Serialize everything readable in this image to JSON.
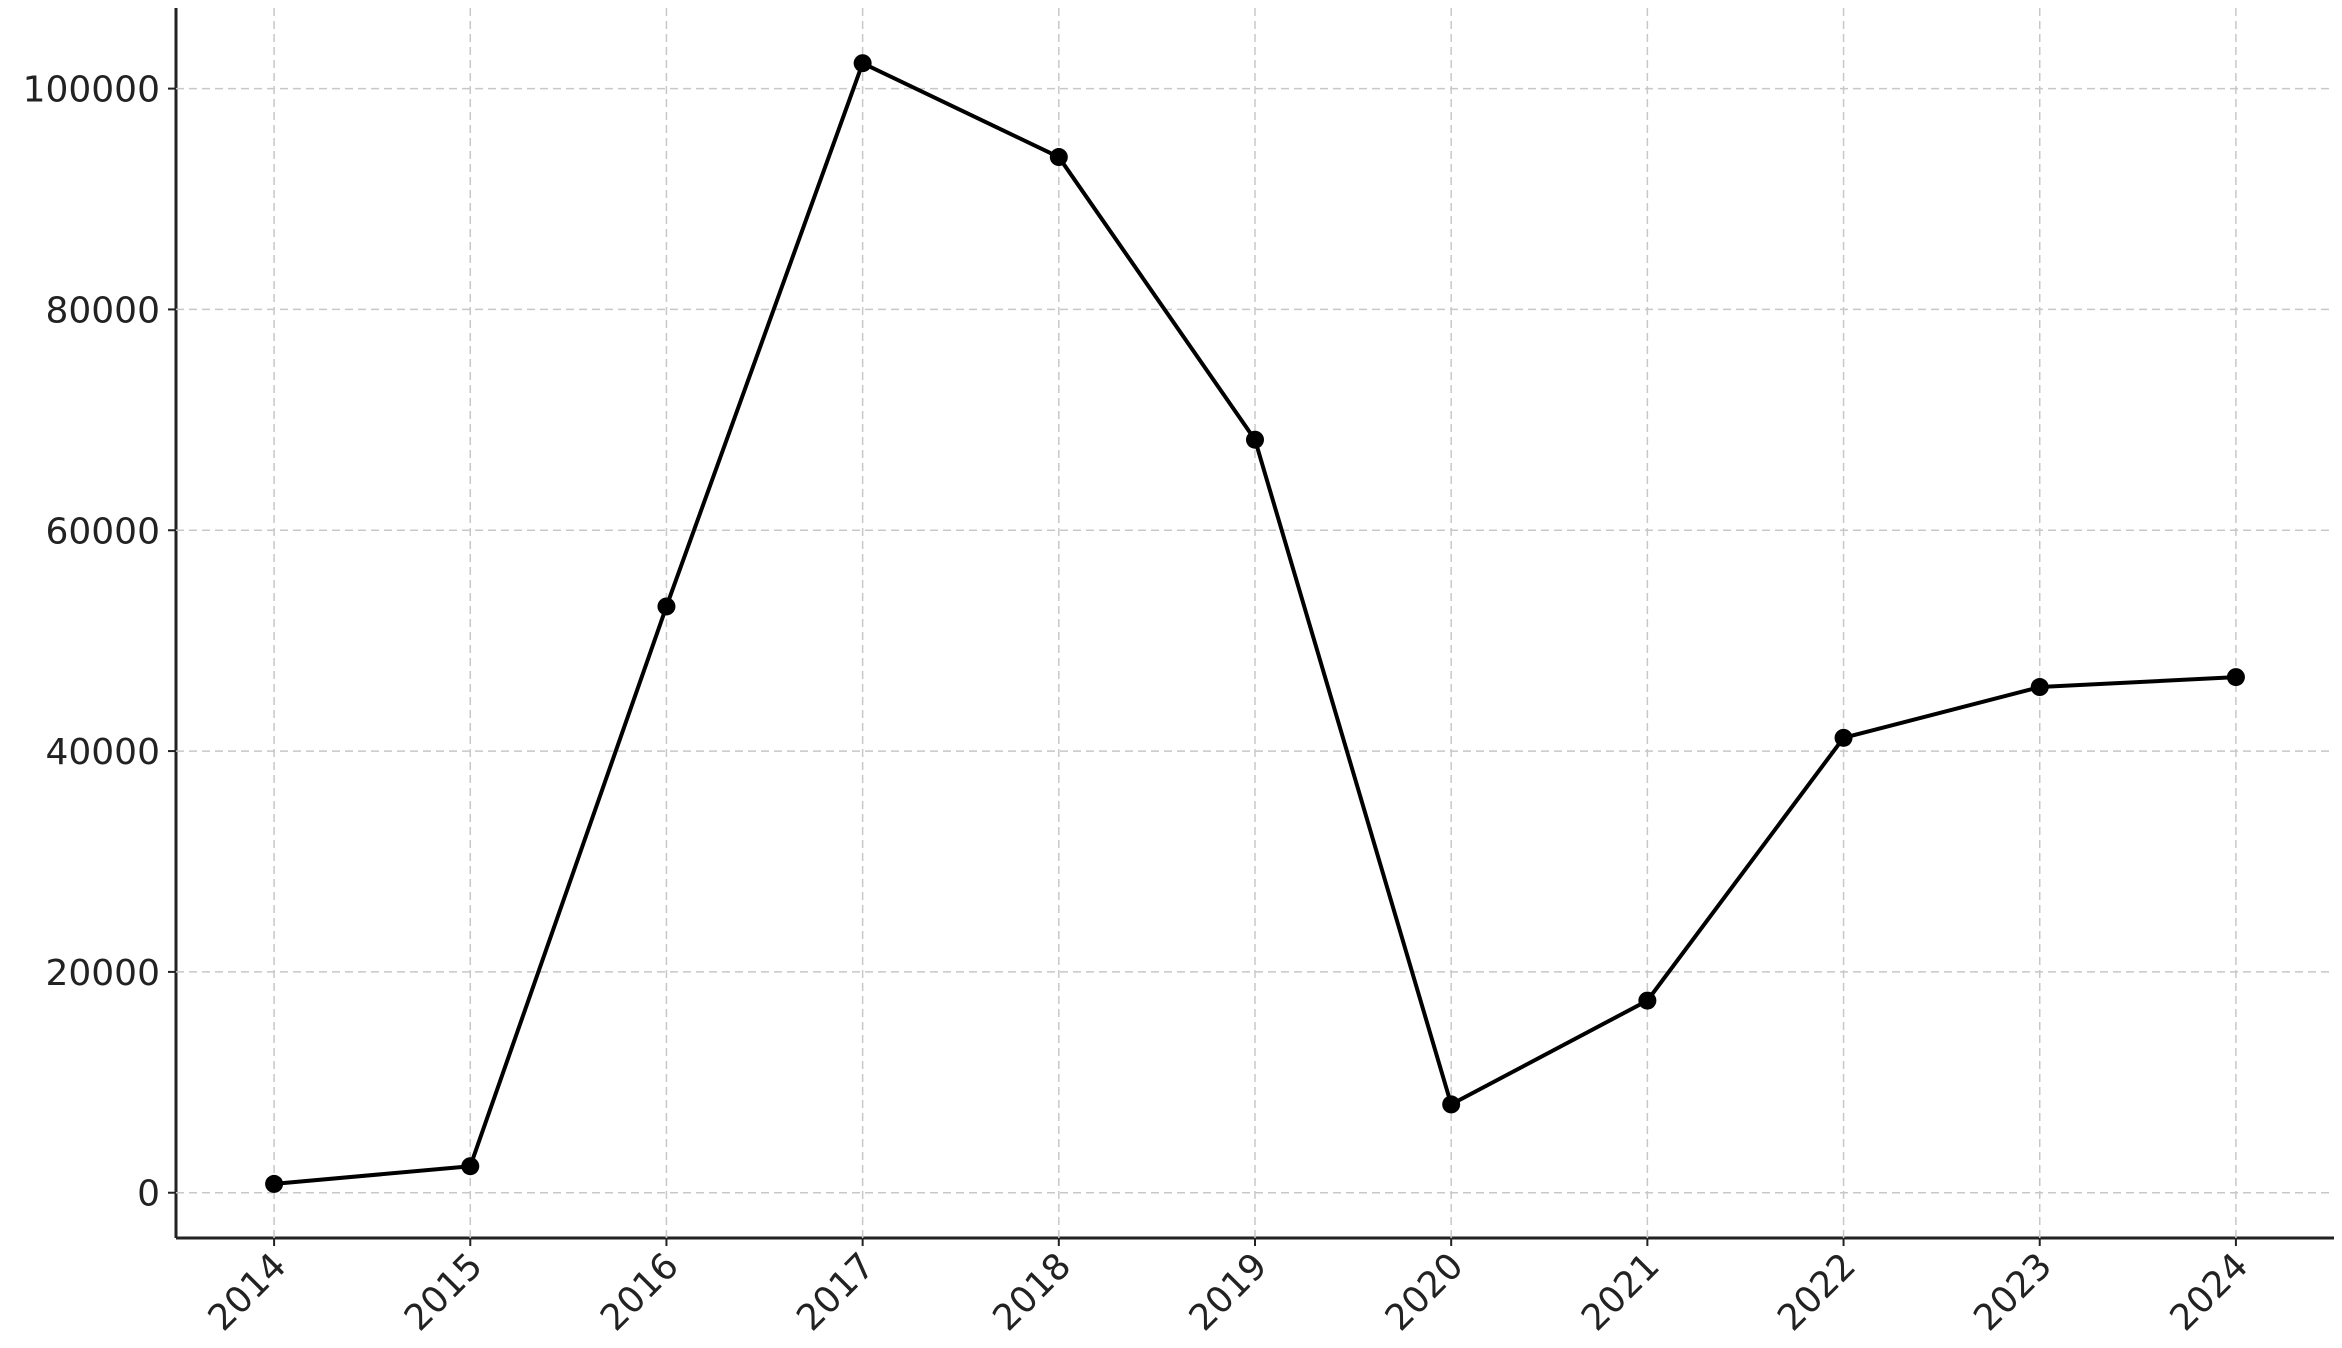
{
  "chart_data": {
    "type": "line",
    "x": [
      2014,
      2015,
      2016,
      2017,
      2018,
      2019,
      2020,
      2021,
      2022,
      2023,
      2024
    ],
    "values": [
      800,
      2400,
      53100,
      102300,
      93800,
      68200,
      8000,
      17400,
      41200,
      45800,
      46700
    ],
    "color": "#000000",
    "xlim": [
      2013.5,
      2024.5
    ],
    "xticks": [
      2014,
      2015,
      2016,
      2017,
      2018,
      2019,
      2020,
      2021,
      2022,
      2023,
      2024
    ],
    "ylim": [
      -4100,
      107300
    ],
    "yticks": [
      0,
      20000,
      40000,
      60000,
      80000,
      100000
    ],
    "grid": true
  }
}
